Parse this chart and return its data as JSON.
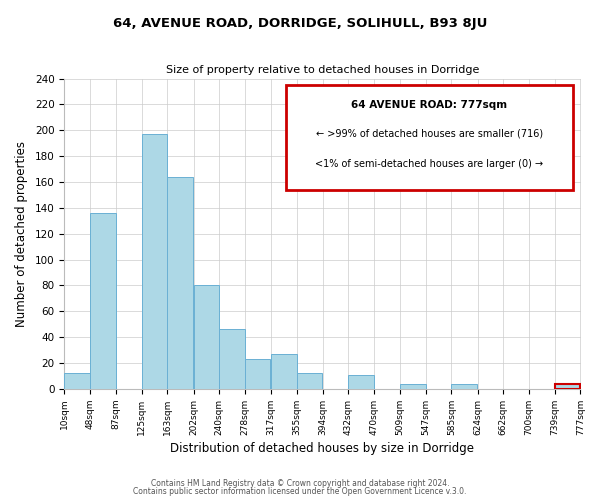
{
  "title": "64, AVENUE ROAD, DORRIDGE, SOLIHULL, B93 8JU",
  "subtitle": "Size of property relative to detached houses in Dorridge",
  "xlabel": "Distribution of detached houses by size in Dorridge",
  "ylabel": "Number of detached properties",
  "bar_left_edges": [
    10,
    48,
    87,
    125,
    163,
    202,
    240,
    278,
    317,
    355,
    394,
    432,
    470,
    509,
    547,
    585,
    624,
    662,
    700,
    739
  ],
  "bar_heights": [
    12,
    136,
    0,
    197,
    164,
    80,
    46,
    23,
    27,
    12,
    0,
    11,
    0,
    4,
    0,
    4,
    0,
    0,
    0,
    4
  ],
  "bin_width": 38,
  "bar_color": "#add8e6",
  "bar_edge_color": "#6ab0d4",
  "tick_labels": [
    "10sqm",
    "48sqm",
    "87sqm",
    "125sqm",
    "163sqm",
    "202sqm",
    "240sqm",
    "278sqm",
    "317sqm",
    "355sqm",
    "394sqm",
    "432sqm",
    "470sqm",
    "509sqm",
    "547sqm",
    "585sqm",
    "624sqm",
    "662sqm",
    "700sqm",
    "739sqm",
    "777sqm"
  ],
  "ylim": [
    0,
    240
  ],
  "yticks": [
    0,
    20,
    40,
    60,
    80,
    100,
    120,
    140,
    160,
    180,
    200,
    220,
    240
  ],
  "annotation_title": "64 AVENUE ROAD: 777sqm",
  "annotation_line1": "← >99% of detached houses are smaller (716)",
  "annotation_line2": "<1% of semi-detached houses are larger (0) →",
  "highlight_bar_index": 19,
  "red_box_color": "#cc0000",
  "footer_line1": "Contains HM Land Registry data © Crown copyright and database right 2024.",
  "footer_line2": "Contains public sector information licensed under the Open Government Licence v.3.0.",
  "grid_color": "#cccccc",
  "background_color": "#ffffff"
}
